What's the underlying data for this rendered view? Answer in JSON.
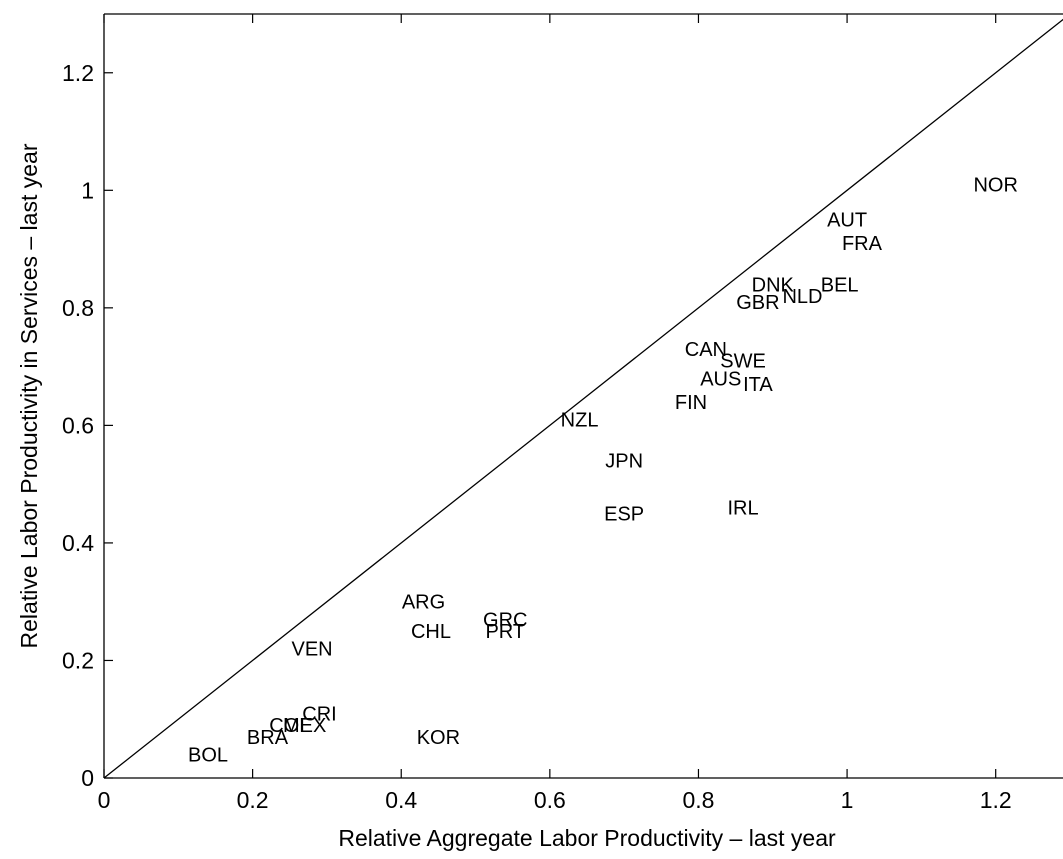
{
  "chart_data": {
    "type": "scatter",
    "title": "",
    "xlabel": "Relative Aggregate Labor Productivity – last year",
    "ylabel": "Relative Labor Productivity in Services – last year",
    "xlim": [
      0,
      1.3
    ],
    "ylim": [
      0,
      1.3
    ],
    "xticks": [
      0,
      0.2,
      0.4,
      0.6,
      0.8,
      1,
      1.2
    ],
    "yticks": [
      0,
      0.2,
      0.4,
      0.6,
      0.8,
      1,
      1.2
    ],
    "xtick_labels": [
      "0",
      "0.2",
      "0.4",
      "0.6",
      "0.8",
      "1",
      "1.2"
    ],
    "ytick_labels": [
      "0",
      "0.2",
      "0.4",
      "0.6",
      "0.8",
      "1",
      "1.2"
    ],
    "grid": false,
    "reference_line": "45-degree line y = x",
    "points": [
      {
        "label": "NOR",
        "x": 1.2,
        "y": 1.01
      },
      {
        "label": "AUT",
        "x": 1.0,
        "y": 0.95
      },
      {
        "label": "FRA",
        "x": 1.02,
        "y": 0.91
      },
      {
        "label": "DNK",
        "x": 0.9,
        "y": 0.84
      },
      {
        "label": "NLD",
        "x": 0.94,
        "y": 0.82
      },
      {
        "label": "BEL",
        "x": 0.99,
        "y": 0.84
      },
      {
        "label": "GBR",
        "x": 0.88,
        "y": 0.81
      },
      {
        "label": "CAN",
        "x": 0.81,
        "y": 0.73
      },
      {
        "label": "SWE",
        "x": 0.86,
        "y": 0.71
      },
      {
        "label": "AUS",
        "x": 0.83,
        "y": 0.68
      },
      {
        "label": "ITA",
        "x": 0.88,
        "y": 0.67
      },
      {
        "label": "FIN",
        "x": 0.79,
        "y": 0.64
      },
      {
        "label": "NZL",
        "x": 0.64,
        "y": 0.61
      },
      {
        "label": "JPN",
        "x": 0.7,
        "y": 0.54
      },
      {
        "label": "ESP",
        "x": 0.7,
        "y": 0.45
      },
      {
        "label": "IRL",
        "x": 0.86,
        "y": 0.46
      },
      {
        "label": "ARG",
        "x": 0.43,
        "y": 0.3
      },
      {
        "label": "CHL",
        "x": 0.44,
        "y": 0.25
      },
      {
        "label": "GRC",
        "x": 0.54,
        "y": 0.27
      },
      {
        "label": "PRT",
        "x": 0.54,
        "y": 0.25
      },
      {
        "label": "VEN",
        "x": 0.28,
        "y": 0.22
      },
      {
        "label": "CRI",
        "x": 0.29,
        "y": 0.11
      },
      {
        "label": "COL",
        "x": 0.25,
        "y": 0.09
      },
      {
        "label": "MEX",
        "x": 0.27,
        "y": 0.09
      },
      {
        "label": "BRA",
        "x": 0.22,
        "y": 0.07
      },
      {
        "label": "BOL",
        "x": 0.14,
        "y": 0.04
      },
      {
        "label": "KOR",
        "x": 0.45,
        "y": 0.07
      }
    ]
  }
}
